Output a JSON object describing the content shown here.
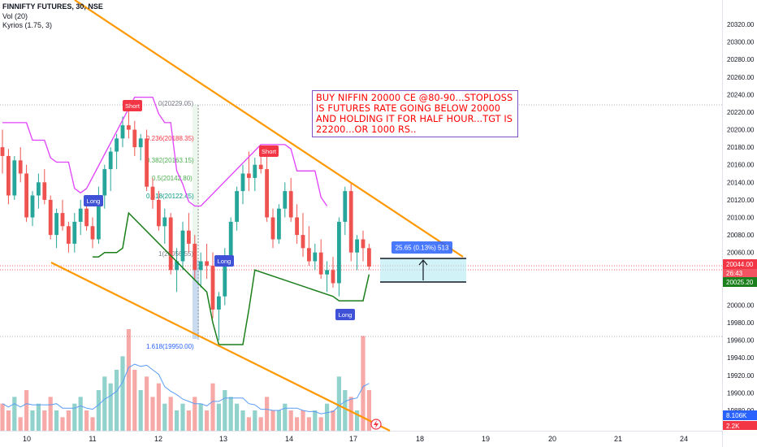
{
  "legend": {
    "symbol": "FINNIFTY FUTURES, 30, NSE",
    "volume": "Vol (20)",
    "indicator": "Kyrios (1.75, 3)"
  },
  "note": {
    "text": "BUY NIFFIN 20000 CE @80-90...STOPLOSS IS  FUTURES RATE GOING BELOW 20000 AND HOLDING IT FOR HALF HOUR...TGT IS 22200...OR 1000 RS.."
  },
  "price_axis": {
    "ticks": [
      "20320.00",
      "20300.00",
      "20280.00",
      "20260.00",
      "20240.00",
      "20220.00",
      "20200.00",
      "20180.00",
      "20160.00",
      "20140.00",
      "20120.00",
      "20100.00",
      "20080.00",
      "20060.00",
      "20000.00",
      "19980.00",
      "19960.00",
      "19940.00",
      "19920.00",
      "19900.00",
      "19880.00"
    ],
    "current_price": "20044.00",
    "countdown": "26:43",
    "stop_price": "20025.20",
    "vol_label": "8.106K",
    "vol_label2": "2.2K"
  },
  "time_axis": {
    "labels": [
      "10",
      "11",
      "12",
      "13",
      "14",
      "17",
      "18",
      "19",
      "20",
      "21",
      "24"
    ]
  },
  "fib_labels": {
    "l0": "0(20229.05)",
    "l236": "0.236(20188.35)",
    "l382": "0.382(20163.15)",
    "l5": "0.5(20142.80)",
    "l618": "0.618(20122.45)",
    "l1": "1(20056.55)",
    "l1618": "1.618(19950.00)"
  },
  "measure_label": "25.65 (0.13%) 513",
  "signals": {
    "short1": "Short",
    "short2": "Short",
    "long1": "Long",
    "long2": "Long",
    "long3": "Long"
  },
  "colors": {
    "up": "#26a69a",
    "down": "#ef5350",
    "trendline": "#ff9800",
    "kyrios_bear": "#e040fb",
    "kyrios_bull": "#1b7f1b",
    "long_badge": "#3f51d6",
    "short_badge": "#f23645",
    "fib_zero": "#787b86",
    "fib_236": "#f23645",
    "fib_382": "#4caf50",
    "fib_5": "#4caf50",
    "fib_618": "#089981",
    "fib_1": "#787b86",
    "fib_1618": "#2962ff"
  },
  "chart_data": {
    "type": "candlestick",
    "title": "FINNIFTY FUTURES, 30, NSE",
    "ylim": [
      19860,
      20340
    ],
    "x_labels": [
      "10",
      "11",
      "12",
      "13",
      "14",
      "17",
      "18",
      "19",
      "20",
      "21",
      "24"
    ],
    "series": [
      {
        "name": "FINNIFTY FUTURES",
        "ohlc": [
          [
            20180,
            20200,
            20150,
            20170
          ],
          [
            20170,
            20178,
            20115,
            20125
          ],
          [
            20125,
            20170,
            20120,
            20165
          ],
          [
            20165,
            20180,
            20140,
            20150
          ],
          [
            20150,
            20160,
            20095,
            20100
          ],
          [
            20100,
            20130,
            20090,
            20125
          ],
          [
            20125,
            20150,
            20110,
            20140
          ],
          [
            20140,
            20155,
            20115,
            20120
          ],
          [
            20120,
            20125,
            20075,
            20080
          ],
          [
            20080,
            20110,
            20065,
            20105
          ],
          [
            20105,
            20120,
            20085,
            20090
          ],
          [
            20090,
            20095,
            20060,
            20070
          ],
          [
            20070,
            20105,
            20060,
            20095
          ],
          [
            20095,
            20120,
            20080,
            20110
          ],
          [
            20110,
            20125,
            20085,
            20090
          ],
          [
            20090,
            20100,
            20065,
            20075
          ],
          [
            20075,
            20135,
            20070,
            20125
          ],
          [
            20125,
            20160,
            20110,
            20155
          ],
          [
            20155,
            20180,
            20130,
            20175
          ],
          [
            20175,
            20195,
            20155,
            20190
          ],
          [
            20190,
            20215,
            20180,
            20205
          ],
          [
            20205,
            20229,
            20190,
            20200
          ],
          [
            20200,
            20210,
            20170,
            20180
          ],
          [
            20180,
            20195,
            20165,
            20190
          ],
          [
            20190,
            20200,
            20130,
            20135
          ],
          [
            20135,
            20145,
            20110,
            20120
          ],
          [
            20120,
            20130,
            20085,
            20090
          ],
          [
            20090,
            20110,
            20070,
            20100
          ],
          [
            20100,
            20105,
            20035,
            20040
          ],
          [
            20040,
            20065,
            20015,
            20050
          ],
          [
            20050,
            20095,
            20040,
            20085
          ],
          [
            20085,
            20105,
            20060,
            20070
          ],
          [
            20070,
            20080,
            20030,
            20040
          ],
          [
            20040,
            20060,
            20020,
            20050
          ],
          [
            20050,
            20070,
            20030,
            20045
          ],
          [
            20045,
            20060,
            19985,
            19995
          ],
          [
            19995,
            20015,
            19960,
            20010
          ],
          [
            20010,
            20065,
            20000,
            20055
          ],
          [
            20055,
            20100,
            20045,
            20095
          ],
          [
            20095,
            20135,
            20085,
            20130
          ],
          [
            20130,
            20160,
            20115,
            20150
          ],
          [
            20150,
            20175,
            20130,
            20145
          ],
          [
            20145,
            20168,
            20130,
            20160
          ],
          [
            20160,
            20175,
            20150,
            20155
          ],
          [
            20155,
            20170,
            20095,
            20100
          ],
          [
            20100,
            20110,
            20065,
            20075
          ],
          [
            20075,
            20115,
            20070,
            20110
          ],
          [
            20110,
            20140,
            20100,
            20130
          ],
          [
            20130,
            20145,
            20095,
            20100
          ],
          [
            20100,
            20115,
            20070,
            20080
          ],
          [
            20080,
            20105,
            20055,
            20065
          ],
          [
            20065,
            20090,
            20045,
            20050
          ],
          [
            20050,
            20070,
            20040,
            20060
          ],
          [
            20060,
            20075,
            20030,
            20035
          ],
          [
            20035,
            20050,
            20015,
            20040
          ],
          [
            20040,
            20055,
            20020,
            20025
          ],
          [
            20025,
            20100,
            20010,
            20095
          ],
          [
            20095,
            20135,
            20080,
            20130
          ],
          [
            20130,
            20140,
            20050,
            20060
          ],
          [
            20060,
            20080,
            20040,
            20075
          ],
          [
            20075,
            20085,
            20050,
            20065
          ],
          [
            20065,
            20070,
            20040,
            20044
          ]
        ]
      },
      {
        "name": "Vol",
        "values": [
          4,
          3,
          5,
          2,
          6,
          3,
          4,
          3,
          5,
          3,
          2,
          3,
          4,
          5,
          3,
          2,
          6,
          8,
          7,
          9,
          11,
          15,
          9,
          6,
          8,
          5,
          7,
          4,
          5,
          3,
          4,
          3,
          5,
          4,
          3,
          7,
          4,
          6,
          5,
          4,
          3,
          2,
          3,
          2,
          5,
          3,
          3,
          4,
          3,
          2,
          3,
          2,
          3,
          2,
          4,
          3,
          8,
          6,
          5,
          3,
          14,
          6
        ]
      }
    ]
  }
}
